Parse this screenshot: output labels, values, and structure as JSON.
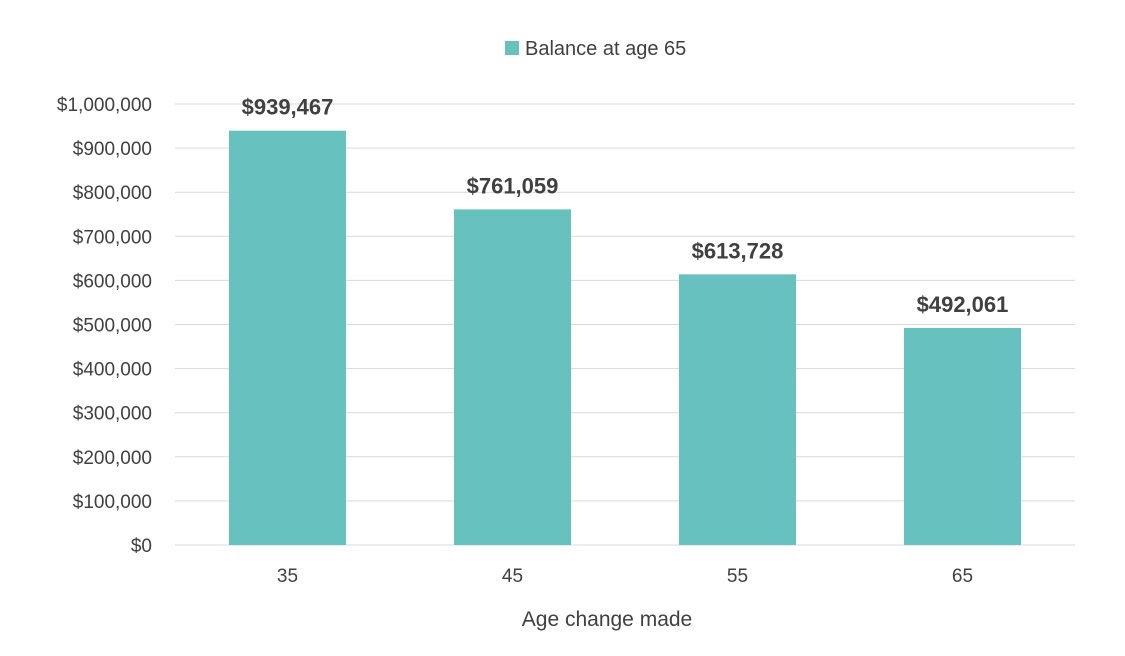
{
  "chart_data": {
    "type": "bar",
    "categories": [
      "35",
      "45",
      "55",
      "65"
    ],
    "series": [
      {
        "name": "Balance at age 65",
        "values": [
          939467,
          761059,
          613728,
          492061
        ],
        "color": "#67c1be",
        "data_labels": [
          "$939,467",
          "$761,059",
          "$613,728",
          "$492,061"
        ]
      }
    ],
    "title": "",
    "xlabel": "Age change made",
    "ylabel": "",
    "ylim": [
      0,
      1000000
    ],
    "yticks": [
      0,
      100000,
      200000,
      300000,
      400000,
      500000,
      600000,
      700000,
      800000,
      900000,
      1000000
    ],
    "ytick_labels": [
      "$0",
      "$100,000",
      "$200,000",
      "$300,000",
      "$400,000",
      "$500,000",
      "$600,000",
      "$700,000",
      "$800,000",
      "$900,000",
      "$1,000,000"
    ],
    "grid": true,
    "legend_position": "top-center"
  },
  "legend": {
    "label": "Balance at age 65",
    "color": "#67c1be"
  }
}
